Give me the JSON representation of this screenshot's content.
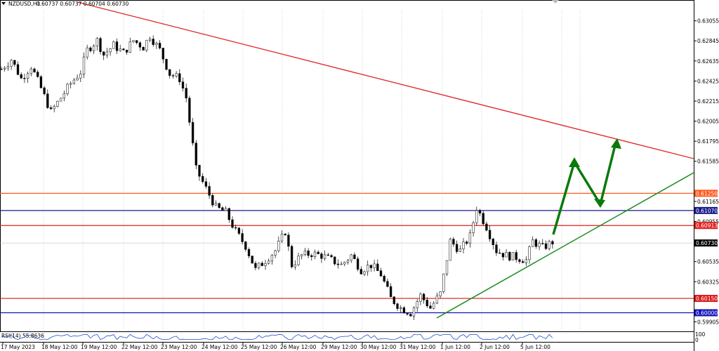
{
  "header": {
    "symbol": "NZDUSD,H1",
    "ohlc": "0.60737 0.60737 0.60704 0.60730"
  },
  "rsi": {
    "label": "RSI(14) 55.8636",
    "scale_top": "100",
    "scale_bottom": "0"
  },
  "chart_data": {
    "type": "candlestick",
    "symbol": "NZDUSD",
    "timeframe": "H1",
    "ylim": [
      0.5982,
      0.6317
    ],
    "y_ticks": [
      "0.63055",
      "0.62845",
      "0.62635",
      "0.62425",
      "0.62215",
      "0.62005",
      "0.61795",
      "0.61585",
      "0.61165",
      "0.60955",
      "0.60535",
      "0.60325",
      "0.59905"
    ],
    "x_ticks": [
      "17 May 2023",
      "18 May 12:00",
      "19 May 12:00",
      "22 May 12:00",
      "23 May 12:00",
      "24 May 12:00",
      "25 May 12:00",
      "26 May 12:00",
      "29 May 12:00",
      "30 May 12:00",
      "31 May 12:00",
      "1 Jun 12:00",
      "2 Jun 12:00",
      "5 Jun 12:00"
    ],
    "price_path": [
      [
        0,
        0.6255
      ],
      [
        3,
        0.6265
      ],
      [
        6,
        0.6245
      ],
      [
        9,
        0.6258
      ],
      [
        12,
        0.6235
      ],
      [
        15,
        0.621
      ],
      [
        18,
        0.6225
      ],
      [
        21,
        0.624
      ],
      [
        24,
        0.6252
      ],
      [
        26,
        0.6275
      ],
      [
        29,
        0.6285
      ],
      [
        31,
        0.627
      ],
      [
        34,
        0.628
      ],
      [
        37,
        0.6272
      ],
      [
        40,
        0.6285
      ],
      [
        43,
        0.6278
      ],
      [
        45,
        0.629
      ],
      [
        48,
        0.6275
      ],
      [
        51,
        0.625
      ],
      [
        54,
        0.6245
      ],
      [
        56,
        0.6225
      ],
      [
        59,
        0.615
      ],
      [
        62,
        0.613
      ],
      [
        65,
        0.611
      ],
      [
        68,
        0.6105
      ],
      [
        71,
        0.6085
      ],
      [
        74,
        0.607
      ],
      [
        77,
        0.6045
      ],
      [
        80,
        0.6055
      ],
      [
        83,
        0.6065
      ],
      [
        86,
        0.6085
      ],
      [
        88,
        0.605
      ],
      [
        91,
        0.606
      ],
      [
        94,
        0.6062
      ],
      [
        97,
        0.606
      ],
      [
        100,
        0.6055
      ],
      [
        103,
        0.605
      ],
      [
        106,
        0.606
      ],
      [
        109,
        0.6045
      ],
      [
        112,
        0.605
      ],
      [
        115,
        0.604
      ],
      [
        118,
        0.6015
      ],
      [
        121,
        0.6005
      ],
      [
        124,
        0.6
      ],
      [
        127,
        0.6018
      ],
      [
        130,
        0.6005
      ],
      [
        133,
        0.602
      ],
      [
        136,
        0.6075
      ],
      [
        139,
        0.6065
      ],
      [
        142,
        0.608
      ],
      [
        144,
        0.611
      ],
      [
        147,
        0.609
      ],
      [
        150,
        0.6065
      ],
      [
        153,
        0.606
      ],
      [
        156,
        0.6058
      ],
      [
        159,
        0.6055
      ],
      [
        161,
        0.6075
      ],
      [
        164,
        0.6068
      ],
      [
        167,
        0.6074
      ]
    ],
    "levels": [
      {
        "value": 0.6125,
        "label": "0.61250",
        "color": "#ff5a1e"
      },
      {
        "value": 0.6107,
        "label": "0.61070",
        "color": "#1a1a8c"
      },
      {
        "value": 0.60913,
        "label": "0.60913",
        "color": "#e02020"
      },
      {
        "value": 0.6073,
        "label": "0.60730",
        "color": "#000000"
      },
      {
        "value": 0.6015,
        "label": "0.60150",
        "color": "#d81818"
      },
      {
        "value": 0.6,
        "label": "0.60000",
        "color": "#1212b8"
      }
    ],
    "current_price": 0.6073,
    "resistance_trendline": {
      "color": "#e03030"
    },
    "support_trendline": {
      "color": "#1a8a1a"
    },
    "forecast_path": {
      "color": "#0a7a0a"
    },
    "grid": true
  },
  "colors": {
    "candle": "#000000",
    "grid": "#c8c8c8",
    "rsi_line": "#1e50c8"
  }
}
